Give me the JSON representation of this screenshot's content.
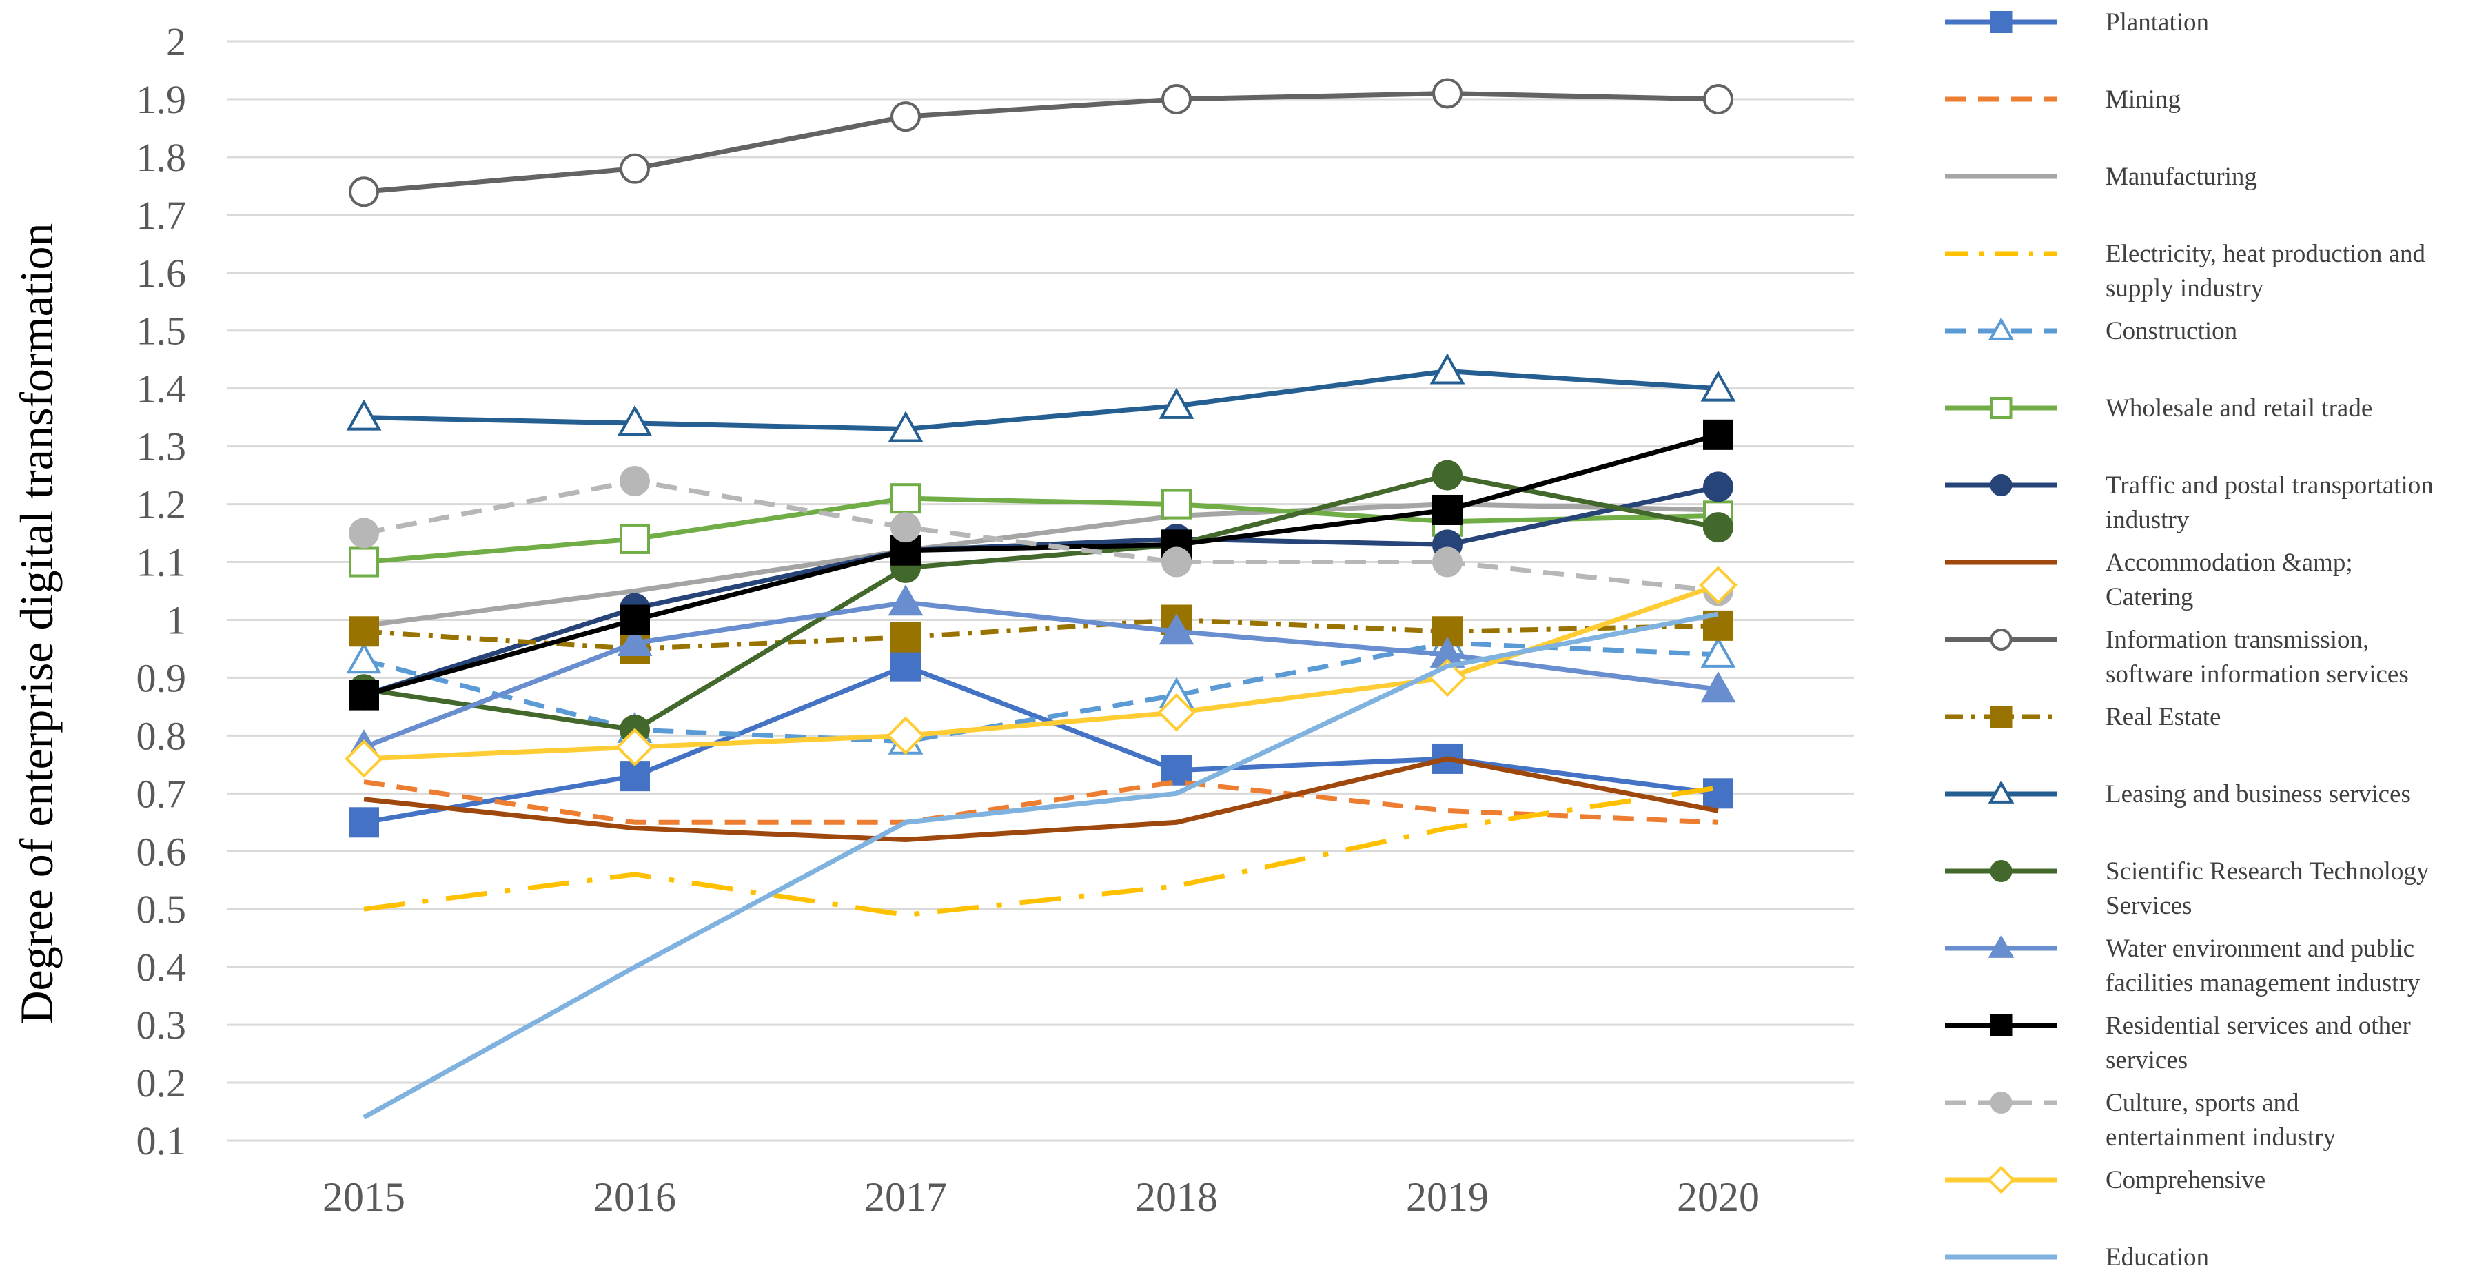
{
  "chart_data": {
    "type": "line",
    "title": "",
    "xlabel": "",
    "ylabel": "Degree of enterprise digital transformation",
    "categories": [
      "2015",
      "2016",
      "2017",
      "2018",
      "2019",
      "2020"
    ],
    "y_ticks": [
      "0.1",
      "0.2",
      "0.3",
      "0.4",
      "0.5",
      "0.6",
      "0.7",
      "0.8",
      "0.9",
      "1",
      "1.1",
      "1.2",
      "1.3",
      "1.4",
      "1.5",
      "1.6",
      "1.7",
      "1.8",
      "1.9",
      "2"
    ],
    "ylim": [
      0.1,
      2.0
    ],
    "grid": true,
    "legend_position": "right",
    "series": [
      {
        "name": "Plantation",
        "legend_lines": [
          "Plantation"
        ],
        "color": "#4472C4",
        "dash": "solid",
        "marker": "square",
        "marker_fill": "filled",
        "values": [
          0.65,
          0.73,
          0.92,
          0.74,
          0.76,
          0.7
        ]
      },
      {
        "name": "Mining",
        "legend_lines": [
          "Mining"
        ],
        "color": "#ED7D31",
        "dash": "dash",
        "marker": "none",
        "marker_fill": "none",
        "values": [
          0.72,
          0.65,
          0.65,
          0.72,
          0.67,
          0.65
        ]
      },
      {
        "name": "Manufacturing",
        "legend_lines": [
          "Manufacturing"
        ],
        "color": "#A5A5A5",
        "dash": "solid",
        "marker": "none",
        "marker_fill": "none",
        "values": [
          0.99,
          1.05,
          1.12,
          1.18,
          1.2,
          1.19
        ]
      },
      {
        "name": "Electricity, heat production and supply industry",
        "legend_lines": [
          "Electricity, heat production and",
          "supply industry"
        ],
        "color": "#FFC000",
        "dash": "longdashdot",
        "marker": "none",
        "marker_fill": "none",
        "values": [
          0.5,
          0.56,
          0.49,
          0.54,
          0.64,
          0.71
        ]
      },
      {
        "name": "Construction",
        "legend_lines": [
          "Construction"
        ],
        "color": "#5B9BD5",
        "dash": "dash",
        "marker": "triangle",
        "marker_fill": "hollow",
        "values": [
          0.93,
          0.81,
          0.79,
          0.87,
          0.96,
          0.94
        ]
      },
      {
        "name": "Wholesale and retail trade",
        "legend_lines": [
          "Wholesale and retail trade"
        ],
        "color": "#70AD47",
        "dash": "solid",
        "marker": "square",
        "marker_fill": "hollow",
        "values": [
          1.1,
          1.14,
          1.21,
          1.2,
          1.17,
          1.18
        ]
      },
      {
        "name": "Traffic and postal transportation industry",
        "legend_lines": [
          "Traffic and postal transportation",
          "industry"
        ],
        "color": "#264478",
        "dash": "solid",
        "marker": "circle",
        "marker_fill": "filled",
        "values": [
          0.87,
          1.02,
          1.12,
          1.14,
          1.13,
          1.23
        ]
      },
      {
        "name": "Accommodation &amp; Catering",
        "legend_lines": [
          "Accommodation &amp;",
          "Catering"
        ],
        "color": "#9E480E",
        "dash": "solid",
        "marker": "none",
        "marker_fill": "none",
        "values": [
          0.69,
          0.64,
          0.62,
          0.65,
          0.76,
          0.67
        ]
      },
      {
        "name": "Information transmission, software information services",
        "legend_lines": [
          "Information transmission,",
          "software information services"
        ],
        "color": "#636363",
        "dash": "solid",
        "marker": "circle",
        "marker_fill": "hollow",
        "values": [
          1.74,
          1.78,
          1.87,
          1.9,
          1.91,
          1.9
        ]
      },
      {
        "name": "Real Estate",
        "legend_lines": [
          "Real Estate"
        ],
        "color": "#997300",
        "dash": "dashdot",
        "marker": "square",
        "marker_fill": "filled",
        "values": [
          0.98,
          0.95,
          0.97,
          1.0,
          0.98,
          0.99
        ]
      },
      {
        "name": "Leasing and business services",
        "legend_lines": [
          "Leasing and business services"
        ],
        "color": "#255E91",
        "dash": "solid",
        "marker": "triangle",
        "marker_fill": "hollow",
        "values": [
          1.35,
          1.34,
          1.33,
          1.37,
          1.43,
          1.4
        ]
      },
      {
        "name": "Scientific Research Technology Services",
        "legend_lines": [
          "Scientific Research Technology",
          "Services"
        ],
        "color": "#43682B",
        "dash": "solid",
        "marker": "circle",
        "marker_fill": "filled",
        "values": [
          0.88,
          0.81,
          1.09,
          1.13,
          1.25,
          1.16
        ]
      },
      {
        "name": "Water environment and public facilities management industry",
        "legend_lines": [
          "Water environment and public",
          "facilities management industry"
        ],
        "color": "#698ED0",
        "dash": "solid",
        "marker": "triangle",
        "marker_fill": "filled",
        "values": [
          0.78,
          0.96,
          1.03,
          0.98,
          0.94,
          0.88
        ]
      },
      {
        "name": "Residential services and other services",
        "legend_lines": [
          "Residential services and other",
          "services"
        ],
        "color": "#000000",
        "dash": "solid",
        "marker": "square",
        "marker_fill": "filled",
        "values": [
          0.87,
          1.0,
          1.12,
          1.13,
          1.19,
          1.32
        ]
      },
      {
        "name": "Culture, sports and entertainment industry",
        "legend_lines": [
          "Culture, sports and",
          "entertainment industry"
        ],
        "color": "#B7B7B7",
        "dash": "dash",
        "marker": "circle",
        "marker_fill": "filled",
        "values": [
          1.15,
          1.24,
          1.16,
          1.1,
          1.1,
          1.05
        ]
      },
      {
        "name": "Comprehensive",
        "legend_lines": [
          "Comprehensive"
        ],
        "color": "#FFCD33",
        "dash": "solid",
        "marker": "diamond",
        "marker_fill": "hollow",
        "values": [
          0.76,
          0.78,
          0.8,
          0.84,
          0.9,
          1.06
        ]
      },
      {
        "name": "Education",
        "legend_lines": [
          "Education"
        ],
        "color": "#7FB2DF",
        "dash": "solid",
        "marker": "none",
        "marker_fill": "none",
        "values": [
          0.14,
          0.4,
          0.65,
          0.7,
          0.92,
          1.01
        ]
      }
    ]
  }
}
